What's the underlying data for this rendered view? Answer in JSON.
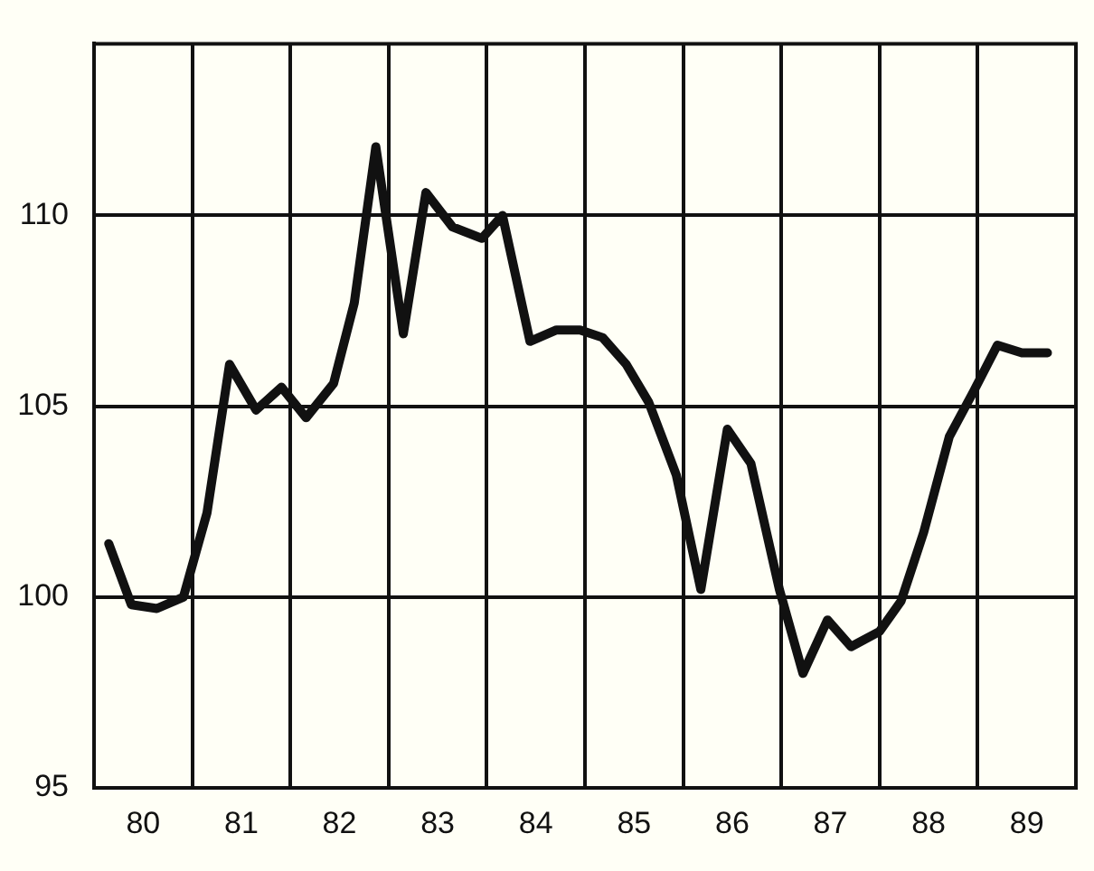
{
  "chart_data": {
    "type": "line",
    "grid": true,
    "marker": "none",
    "line_style": "solid",
    "xlim": [
      79.5,
      89.5
    ],
    "xticks": [
      {
        "value": 79.5,
        "label": null
      },
      80,
      {
        "value": 80.5,
        "label": null
      },
      81,
      {
        "value": 81.5,
        "label": null
      },
      82,
      {
        "value": 82.5,
        "label": null
      },
      83,
      {
        "value": 83.5,
        "label": null
      },
      84,
      {
        "value": 84.5,
        "label": null
      },
      85,
      {
        "value": 85.5,
        "label": null
      },
      86,
      {
        "value": 86.5,
        "label": null
      },
      87,
      {
        "value": 87.5,
        "label": null
      },
      88,
      {
        "value": 88.5,
        "label": null
      },
      89,
      {
        "value": 89.5,
        "label": null
      }
    ],
    "ylim": [
      95,
      114.5
    ],
    "yticks": [
      95,
      100,
      105,
      110
    ],
    "series": [
      {
        "color": "#111111",
        "x": [
          79.65,
          79.88,
          80.14,
          80.41,
          80.65,
          80.88,
          81.15,
          81.41,
          81.66,
          81.94,
          82.15,
          82.37,
          82.65,
          82.88,
          83.15,
          83.45,
          83.66,
          83.94,
          84.21,
          84.45,
          84.68,
          84.92,
          85.15,
          85.43,
          85.68,
          85.95,
          86.19,
          86.48,
          86.72,
          86.97,
          87.21,
          87.5,
          87.72,
          87.95,
          88.21,
          88.46,
          88.7,
          88.95,
          89.21
        ],
        "values": [
          101.4,
          99.8,
          99.7,
          100.0,
          102.2,
          106.1,
          104.9,
          105.5,
          104.7,
          105.6,
          107.7,
          111.8,
          106.9,
          110.6,
          109.7,
          109.4,
          110.0,
          106.7,
          107.0,
          107.0,
          106.8,
          106.1,
          105.1,
          103.2,
          100.2,
          104.4,
          103.5,
          100.2,
          98.0,
          99.4,
          98.7,
          99.1,
          99.9,
          101.7,
          104.2,
          105.4,
          106.6,
          106.4,
          106.4
        ]
      }
    ]
  }
}
